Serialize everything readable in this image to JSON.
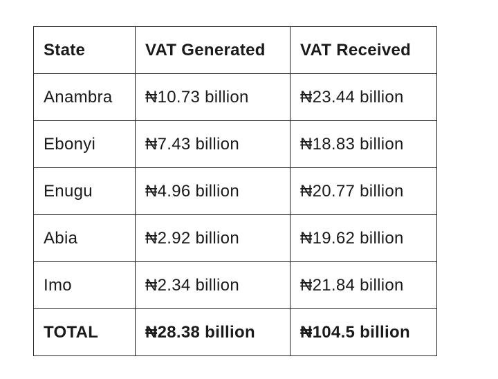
{
  "table": {
    "headers": [
      "State",
      "VAT Generated",
      "VAT Received"
    ],
    "rows": [
      [
        "Anambra",
        "₦10.73 billion",
        "₦23.44 billion"
      ],
      [
        "Ebonyi",
        "₦7.43 billion",
        "₦18.83 billion"
      ],
      [
        "Enugu",
        "₦4.96 billion",
        "₦20.77 billion"
      ],
      [
        "Abia",
        "₦2.92 billion",
        "₦19.62 billion"
      ],
      [
        "Imo",
        "₦2.34 billion",
        "₦21.84 billion"
      ]
    ],
    "total": [
      "TOTAL",
      "₦28.38 billion",
      "₦104.5 billion"
    ]
  }
}
